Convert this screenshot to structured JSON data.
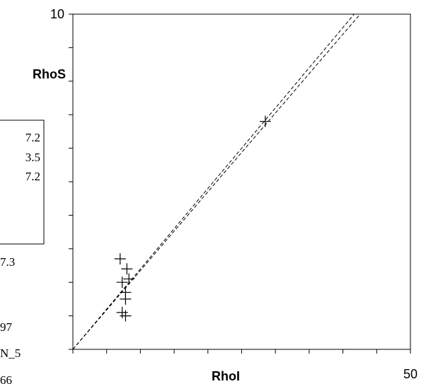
{
  "chart_data": {
    "type": "scatter",
    "xlabel": "RhoI",
    "ylabel": "RhoS",
    "xlim": [
      0,
      50
    ],
    "ylim": [
      0,
      10
    ],
    "x_tick_labels": [
      {
        "value": 50,
        "label": "50"
      }
    ],
    "y_tick_labels": [
      {
        "value": 10,
        "label": "10"
      }
    ],
    "x_minor_ticks": [
      0,
      5,
      10,
      15,
      20,
      25,
      30,
      35,
      40,
      45,
      50
    ],
    "y_minor_ticks": [
      0,
      1,
      2,
      3,
      4,
      5,
      6,
      7,
      8,
      9,
      10
    ],
    "grid": false,
    "points": [
      {
        "x": 7.3,
        "y": 1.1
      },
      {
        "x": 7.0,
        "y": 2.7
      },
      {
        "x": 8.0,
        "y": 2.4
      },
      {
        "x": 8.3,
        "y": 2.1
      },
      {
        "x": 7.3,
        "y": 2.0
      },
      {
        "x": 7.8,
        "y": 1.7
      },
      {
        "x": 7.8,
        "y": 1.5
      },
      {
        "x": 7.8,
        "y": 1.0
      },
      {
        "x": 28.5,
        "y": 6.8
      }
    ],
    "fit_lines": [
      {
        "slope": 0.235,
        "intercept": 0
      },
      {
        "slope": 0.24,
        "intercept": 0
      }
    ]
  },
  "legend_box": {
    "values": [
      "7.2",
      "3.5",
      "7.2"
    ]
  },
  "side_text": {
    "items": [
      "7.3",
      "97",
      "N_5",
      "66"
    ]
  },
  "colors": {
    "ink": "#000000",
    "background": "#ffffff"
  }
}
